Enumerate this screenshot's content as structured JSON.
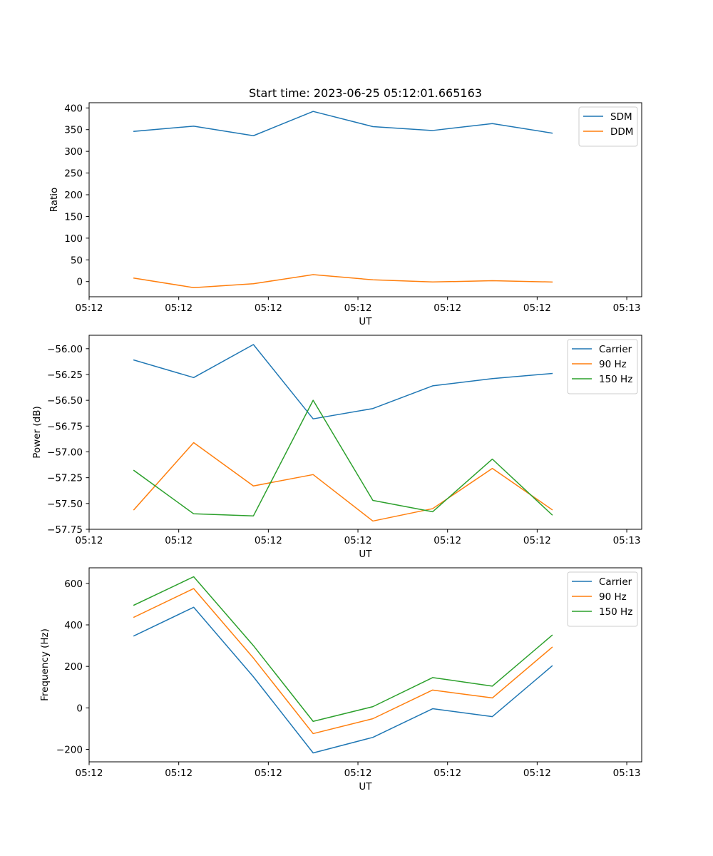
{
  "figure": {
    "title": "Start time: 2023-06-25 05:12:01.665163"
  },
  "colors": {
    "c0": "#1f77b4",
    "c1": "#ff7f0e",
    "c2": "#2ca02c"
  },
  "chart_data": [
    {
      "type": "line",
      "title": "Start time: 2023-06-25 05:12:01.665163",
      "xlabel": "UT",
      "ylabel": "Ratio",
      "x_ticks": [
        "05:12",
        "05:12",
        "05:12",
        "05:12",
        "05:12",
        "05:12",
        "05:13"
      ],
      "xlim": [
        0,
        9.25
      ],
      "ylim": [
        -35,
        412
      ],
      "y_ticks": [
        0,
        50,
        100,
        150,
        200,
        250,
        300,
        350,
        400
      ],
      "y_tick_labels": [
        "0",
        "50",
        "100",
        "150",
        "200",
        "250",
        "300",
        "350",
        "400"
      ],
      "x": [
        0.75,
        1.75,
        2.75,
        3.75,
        4.75,
        5.75,
        6.75,
        7.75
      ],
      "legend_position": "top-right",
      "series": [
        {
          "name": "SDM",
          "color": "c0",
          "values": [
            346,
            358,
            336,
            392,
            357,
            348,
            364,
            342
          ]
        },
        {
          "name": "DDM",
          "color": "c1",
          "values": [
            8,
            -14,
            -5,
            16,
            4,
            -1,
            2,
            -1
          ]
        }
      ]
    },
    {
      "type": "line",
      "xlabel": "UT",
      "ylabel": "Power (dB)",
      "x_ticks": [
        "05:12",
        "05:12",
        "05:12",
        "05:12",
        "05:12",
        "05:12",
        "05:13"
      ],
      "xlim": [
        0,
        9.25
      ],
      "ylim": [
        -57.75,
        -55.87
      ],
      "y_ticks": [
        -57.75,
        -57.5,
        -57.25,
        -57.0,
        -56.75,
        -56.5,
        -56.25,
        -56.0
      ],
      "y_tick_labels": [
        "−57.75",
        "−57.50",
        "−57.25",
        "−57.00",
        "−56.75",
        "−56.50",
        "−56.25",
        "−56.00"
      ],
      "x": [
        0.75,
        1.75,
        2.75,
        3.75,
        4.75,
        5.75,
        6.75,
        7.75
      ],
      "legend_position": "top-right",
      "series": [
        {
          "name": "Carrier",
          "color": "c0",
          "values": [
            -56.11,
            -56.28,
            -55.96,
            -56.68,
            -56.58,
            -56.36,
            -56.29,
            -56.24
          ]
        },
        {
          "name": "90 Hz",
          "color": "c1",
          "values": [
            -57.56,
            -56.91,
            -57.33,
            -57.22,
            -57.67,
            -57.55,
            -57.16,
            -57.56
          ]
        },
        {
          "name": "150 Hz",
          "color": "c2",
          "values": [
            -57.18,
            -57.6,
            -57.62,
            -56.5,
            -57.47,
            -57.58,
            -57.07,
            -57.61
          ]
        }
      ]
    },
    {
      "type": "line",
      "xlabel": "UT",
      "ylabel": "Frequency (Hz)",
      "x_ticks": [
        "05:12",
        "05:12",
        "05:12",
        "05:12",
        "05:12",
        "05:12",
        "05:13"
      ],
      "xlim": [
        0,
        9.25
      ],
      "ylim": [
        -260,
        675
      ],
      "y_ticks": [
        -200,
        0,
        200,
        400,
        600
      ],
      "y_tick_labels": [
        "−200",
        "0",
        "200",
        "400",
        "600"
      ],
      "x": [
        0.75,
        1.75,
        2.75,
        3.75,
        4.75,
        5.75,
        6.75,
        7.75
      ],
      "legend_position": "top-right",
      "series": [
        {
          "name": "Carrier",
          "color": "c0",
          "values": [
            347,
            485,
            150,
            -217,
            -142,
            -4,
            -42,
            202
          ]
        },
        {
          "name": "90 Hz",
          "color": "c1",
          "values": [
            437,
            575,
            240,
            -124,
            -52,
            86,
            48,
            292
          ]
        },
        {
          "name": "150 Hz",
          "color": "c2",
          "values": [
            495,
            632,
            300,
            -65,
            6,
            146,
            105,
            350
          ]
        }
      ]
    }
  ]
}
